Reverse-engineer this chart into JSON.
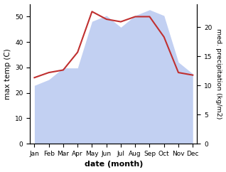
{
  "months": [
    "Jan",
    "Feb",
    "Mar",
    "Apr",
    "May",
    "Jun",
    "Jul",
    "Aug",
    "Sep",
    "Oct",
    "Nov",
    "Dec"
  ],
  "temp": [
    26,
    28,
    29,
    36,
    52,
    49,
    48,
    50,
    50,
    42,
    28,
    27
  ],
  "precip": [
    10,
    11,
    13,
    13,
    21,
    22,
    20,
    22,
    23,
    22,
    14,
    12
  ],
  "temp_color": "#c03030",
  "precip_fill_color": "#b8c8f0",
  "precip_fill_alpha": 0.85,
  "temp_ylim": [
    0,
    55
  ],
  "precip_ylim": [
    0,
    24
  ],
  "temp_yticks": [
    0,
    10,
    20,
    30,
    40,
    50
  ],
  "precip_yticks": [
    0,
    5,
    10,
    15,
    20
  ],
  "xlabel": "date (month)",
  "ylabel_left": "max temp (C)",
  "ylabel_right": "med. precipitation (kg/m2)",
  "background_color": "#ffffff"
}
